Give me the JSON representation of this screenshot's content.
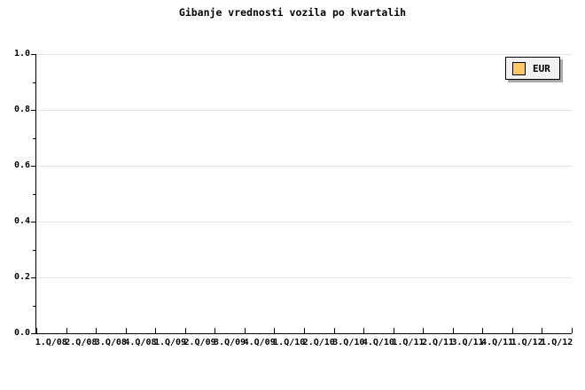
{
  "title": "Gibanje vrednosti vozila po kvartalih",
  "legend": {
    "label": "EUR",
    "swatch_color": "#FAC864",
    "background": "#F2F2F2"
  },
  "colors": {
    "background": "#FFFFFF",
    "axis": "#000000",
    "grid": "#E4E4E4",
    "text": "#000000",
    "legend_shadow": "#AAAAAA"
  },
  "chart_data": {
    "type": "line",
    "title": "Gibanje vrednosti vozila po kvartalih",
    "categories": [
      "1.Q/08",
      "2.Q/08",
      "3.Q/08",
      "4.Q/08",
      "1.Q/09",
      "2.Q/09",
      "3.Q/09",
      "4.Q/09",
      "1.Q/10",
      "2.Q/10",
      "3.Q/10",
      "4.Q/10",
      "1.Q/11",
      "2.Q/11",
      "3.Q/11",
      "4.Q/11",
      "1.Q/12",
      "1.Q/12"
    ],
    "series": [
      {
        "name": "EUR",
        "color": "#FAC864",
        "values": []
      }
    ],
    "xlabel": "",
    "ylabel": "",
    "ylim": [
      0.0,
      1.0
    ],
    "yticks": [
      "0.0",
      "0.2",
      "0.4",
      "0.6",
      "0.8",
      "1.0"
    ],
    "minor_ytick_interval": 0.1,
    "grid": "horizontal-only",
    "legend_position": "top-right"
  }
}
